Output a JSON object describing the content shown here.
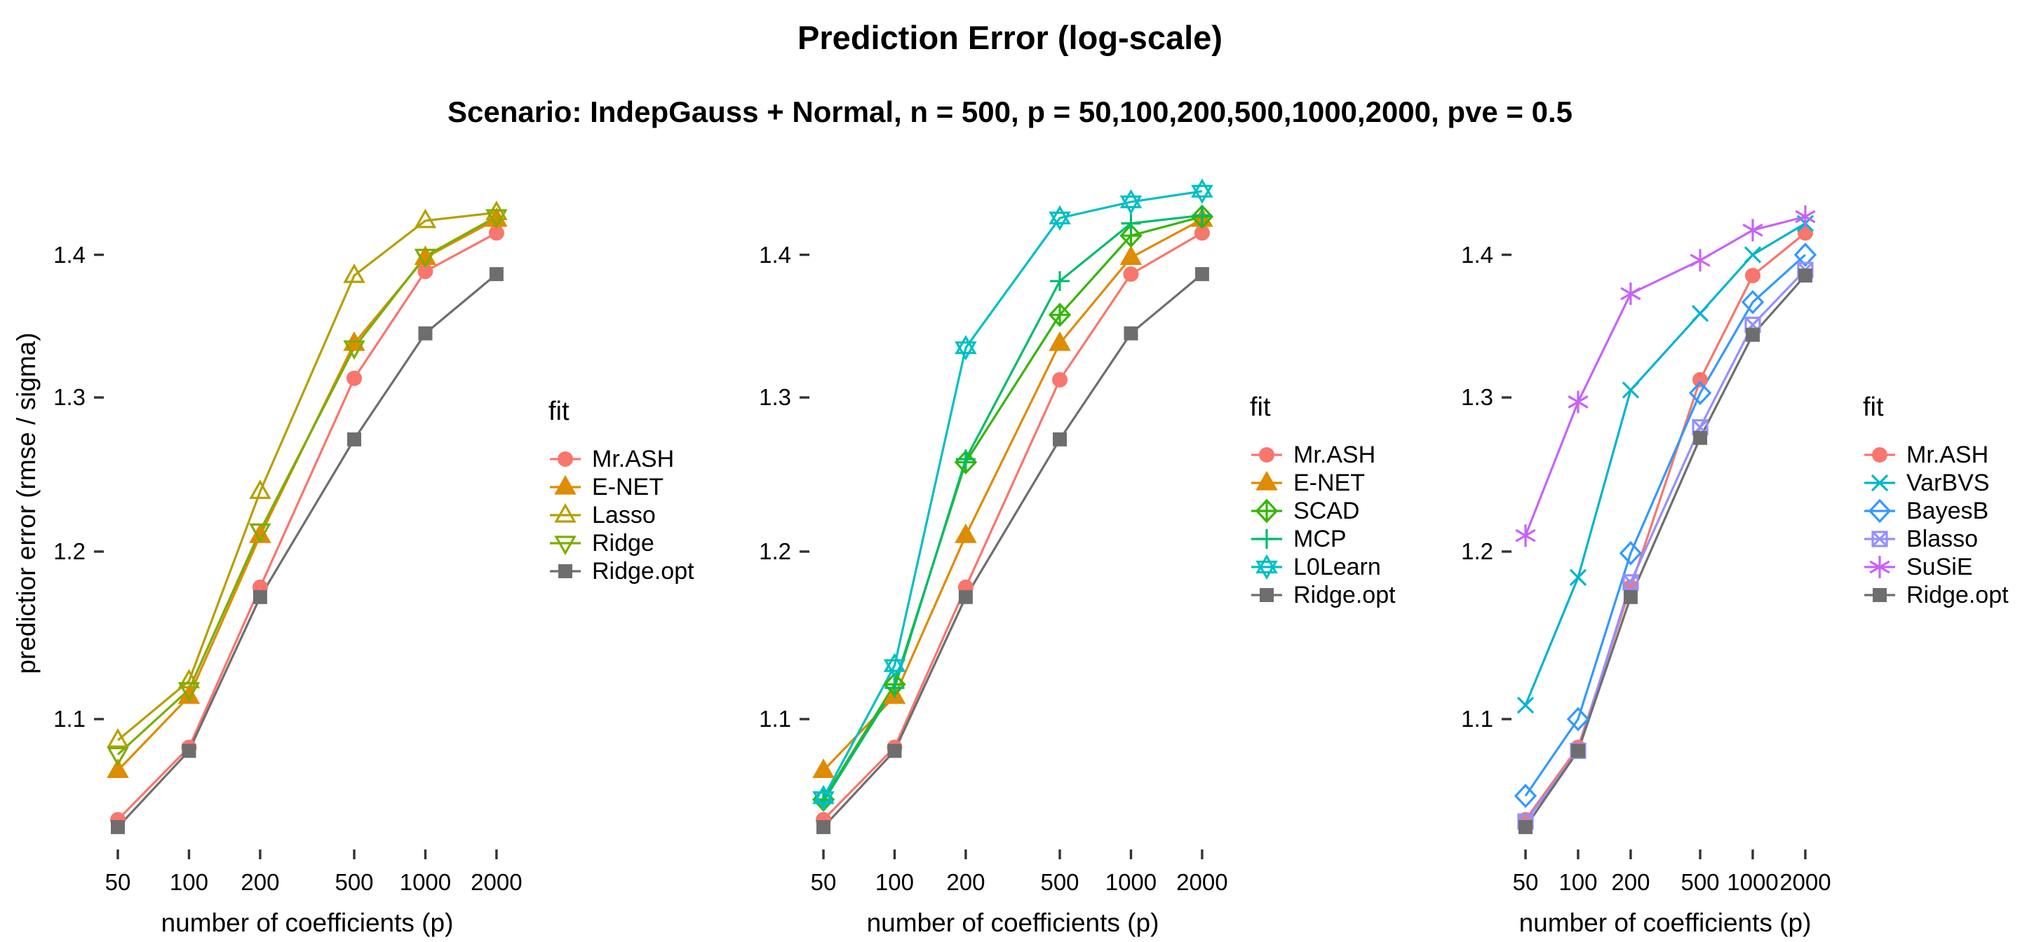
{
  "title": "Prediction Error (log-scale)",
  "subtitle": "Scenario: IndepGauss + Normal, n = 500, p = 50,100,200,500,1000,2000, pve = 0.5",
  "legend_title": "fit",
  "axes": {
    "x_title": "number of coefficients (p)",
    "y_title": "predictior error (rmse / sigma)",
    "x_ticks": [
      50,
      100,
      200,
      500,
      1000,
      2000
    ],
    "y_ticks": [
      1.1,
      1.2,
      1.3,
      1.4
    ]
  },
  "chart_data": [
    {
      "type": "line",
      "panel": "left",
      "x": [
        50,
        100,
        200,
        500,
        1000,
        2000
      ],
      "x_scale": "log",
      "y_scale": "log",
      "xlabel": "number of coefficients (p)",
      "ylabel": "predictior error (rmse / sigma)",
      "ylim": [
        1.03,
        1.46
      ],
      "legend_position": "right",
      "grid": false,
      "series": [
        {
          "name": "Mr.ASH",
          "marker": "circle-filled",
          "color": "#F8766D",
          "values": [
            1.044,
            1.084,
            1.178,
            1.313,
            1.388,
            1.416
          ]
        },
        {
          "name": "E-NET",
          "marker": "triangle-filled",
          "color": "#DE8C00",
          "values": [
            1.071,
            1.113,
            1.21,
            1.337,
            1.398,
            1.426
          ]
        },
        {
          "name": "Lasso",
          "marker": "triangle-open",
          "color": "#B79F00",
          "values": [
            1.088,
            1.122,
            1.238,
            1.385,
            1.425,
            1.431
          ]
        },
        {
          "name": "Ridge",
          "marker": "triangle-down-open",
          "color": "#7CAE00",
          "values": [
            1.08,
            1.117,
            1.213,
            1.334,
            1.399,
            1.428
          ]
        },
        {
          "name": "Ridge.opt",
          "marker": "square-filled",
          "color": "#6E6E6E",
          "values": [
            1.04,
            1.082,
            1.172,
            1.272,
            1.344,
            1.386
          ]
        }
      ]
    },
    {
      "type": "line",
      "panel": "middle",
      "x": [
        50,
        100,
        200,
        500,
        1000,
        2000
      ],
      "x_scale": "log",
      "y_scale": "log",
      "xlabel": "number of coefficients (p)",
      "ylim": [
        1.03,
        1.46
      ],
      "legend_position": "right",
      "grid": false,
      "series": [
        {
          "name": "Mr.ASH",
          "marker": "circle-filled",
          "color": "#F8766D",
          "values": [
            1.044,
            1.084,
            1.178,
            1.312,
            1.386,
            1.416
          ]
        },
        {
          "name": "E-NET",
          "marker": "triangle-filled",
          "color": "#DE8C00",
          "values": [
            1.071,
            1.113,
            1.21,
            1.337,
            1.398,
            1.426
          ]
        },
        {
          "name": "SCAD",
          "marker": "diamond-plus",
          "color": "#35B607",
          "values": [
            1.055,
            1.12,
            1.257,
            1.357,
            1.414,
            1.428
          ]
        },
        {
          "name": "MCP",
          "marker": "plus",
          "color": "#00BC6C",
          "values": [
            1.054,
            1.118,
            1.259,
            1.381,
            1.423,
            1.429
          ]
        },
        {
          "name": "L0Learn",
          "marker": "star6-open",
          "color": "#00BFC4",
          "values": [
            1.056,
            1.131,
            1.334,
            1.427,
            1.439,
            1.447
          ]
        },
        {
          "name": "Ridge.opt",
          "marker": "square-filled",
          "color": "#6E6E6E",
          "values": [
            1.04,
            1.082,
            1.172,
            1.272,
            1.344,
            1.386
          ]
        }
      ]
    },
    {
      "type": "line",
      "panel": "right",
      "x": [
        50,
        100,
        200,
        500,
        1000,
        2000
      ],
      "x_scale": "log",
      "y_scale": "log",
      "xlabel": "number of coefficients (p)",
      "ylim": [
        1.03,
        1.46
      ],
      "legend_position": "right",
      "grid": false,
      "series": [
        {
          "name": "Mr.ASH",
          "marker": "circle-filled",
          "color": "#F8766D",
          "values": [
            1.044,
            1.084,
            1.178,
            1.312,
            1.385,
            1.416
          ]
        },
        {
          "name": "VarBVS",
          "marker": "x",
          "color": "#00B4D0",
          "values": [
            1.108,
            1.184,
            1.305,
            1.358,
            1.4,
            1.423
          ]
        },
        {
          "name": "BayesB",
          "marker": "diamond-open",
          "color": "#3399FF",
          "values": [
            1.057,
            1.1,
            1.199,
            1.303,
            1.366,
            1.4
          ]
        },
        {
          "name": "Blasso",
          "marker": "square-x-open",
          "color": "#9590FF",
          "values": [
            1.043,
            1.082,
            1.181,
            1.28,
            1.35,
            1.389
          ]
        },
        {
          "name": "SuSiE",
          "marker": "asterisk6",
          "color": "#C763F7",
          "values": [
            1.21,
            1.297,
            1.372,
            1.396,
            1.418,
            1.428
          ]
        },
        {
          "name": "Ridge.opt",
          "marker": "square-filled",
          "color": "#6E6E6E",
          "values": [
            1.04,
            1.082,
            1.172,
            1.273,
            1.343,
            1.385
          ]
        }
      ]
    }
  ]
}
